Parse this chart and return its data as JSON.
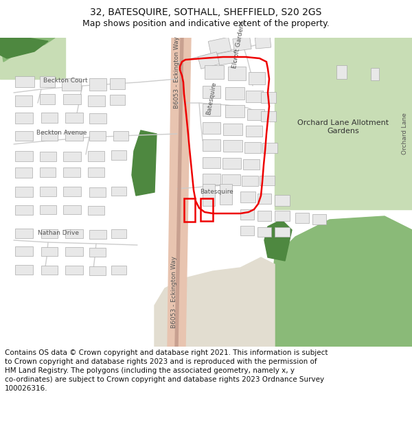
{
  "title_line1": "32, BATESQUIRE, SOTHALL, SHEFFIELD, S20 2GS",
  "title_line2": "Map shows position and indicative extent of the property.",
  "footer_text": "Contains OS data © Crown copyright and database right 2021. This information is subject to Crown copyright and database rights 2023 and is reproduced with the permission of HM Land Registry. The polygons (including the associated geometry, namely x, y co-ordinates) are subject to Crown copyright and database rights 2023 Ordnance Survey 100026316.",
  "title_fontsize": 10,
  "subtitle_fontsize": 9,
  "footer_fontsize": 7.5,
  "fig_width": 6.0,
  "fig_height": 6.25,
  "bg_color": "#f5f3ef",
  "road_main_color": "#e8c4b0",
  "road_edge_color": "#c8a090",
  "green_light": "#c8ddb5",
  "green_mid": "#8aba78",
  "green_dark": "#4e8840",
  "beige_bottom": "#e2ddd0",
  "building_fill": "#e8e8e8",
  "building_edge": "#b0b0b0",
  "red_color": "#ee0000",
  "white": "#ffffff"
}
